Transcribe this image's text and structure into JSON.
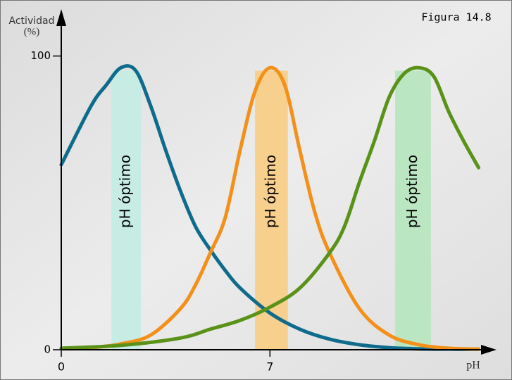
{
  "chart_data": {
    "type": "line",
    "annotation": "Figura 14.8",
    "ylabel": [
      "Actividad",
      "(%)"
    ],
    "xlabel": "pH",
    "xlim": [
      0,
      14.6
    ],
    "ylim": [
      0,
      115
    ],
    "xticks": [
      0,
      7
    ],
    "yticks": [
      0,
      100
    ],
    "bands": [
      {
        "label": "pH óptimo",
        "x": [
          1.68,
          2.67
        ],
        "y": [
          0,
          95
        ],
        "color": "#c6ece3"
      },
      {
        "label": "pH óptimo",
        "x": [
          6.5,
          7.6
        ],
        "y": [
          0,
          95
        ],
        "color": "#f6d08c"
      },
      {
        "label": "pH óptimo",
        "x": [
          11.2,
          12.4
        ],
        "y": [
          0,
          95
        ],
        "color": "#bae6c2"
      }
    ],
    "series": [
      {
        "color": "#0f6b8c",
        "x": [
          0,
          1,
          1.5,
          2,
          2.5,
          3,
          3.5,
          4,
          4.5,
          5,
          5.5,
          6,
          7,
          8,
          9,
          10,
          11,
          12,
          13,
          14
        ],
        "values": [
          63,
          83,
          90,
          96,
          95,
          83,
          68,
          54,
          42,
          34,
          27,
          21,
          12.5,
          7,
          3.6,
          1.7,
          0.7,
          0.3,
          0.2,
          0.2
        ]
      },
      {
        "color": "#f39019",
        "x": [
          0,
          1,
          2,
          3,
          4,
          4.5,
          5,
          5.5,
          6,
          6.5,
          7,
          7.5,
          8,
          8.5,
          9,
          10,
          11,
          12,
          13,
          14
        ],
        "values": [
          0.3,
          0.7,
          2,
          5,
          14,
          22,
          33,
          45,
          68,
          88,
          96,
          90,
          68,
          47,
          33,
          14,
          5,
          1.7,
          0.5,
          0.2
        ]
      },
      {
        "color": "#5a9219",
        "x": [
          0,
          2,
          4,
          5,
          6,
          7,
          8,
          9,
          9.5,
          10,
          10.5,
          11,
          11.5,
          12,
          12.5,
          13,
          13.5,
          14
        ],
        "values": [
          0.5,
          1.5,
          4,
          7,
          10,
          14.5,
          21,
          33,
          42,
          57,
          71,
          86,
          94,
          96,
          93,
          81,
          71,
          62
        ]
      }
    ]
  }
}
